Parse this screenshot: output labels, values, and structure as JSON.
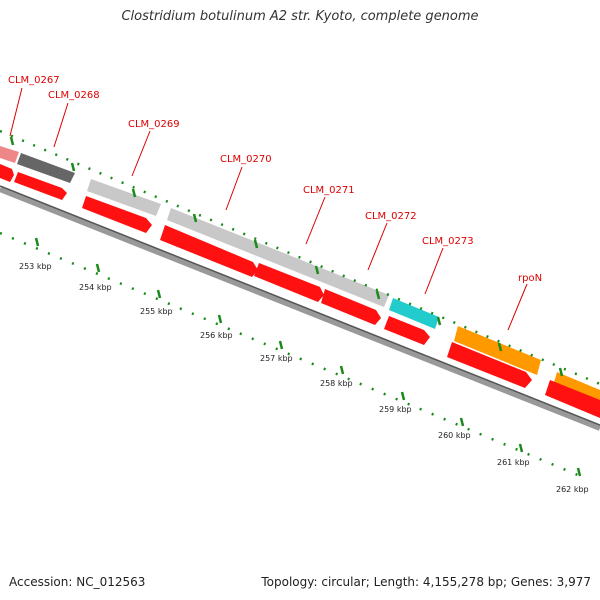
{
  "title": "Clostridium botulinum A2 str. Kyoto, complete genome",
  "footer": {
    "accession": "Accession: NC_012563",
    "summary": "Topology: circular; Length: 4,155,278 bp; Genes: 3,977"
  },
  "colors": {
    "label": "#dd0000",
    "tick": "#1a8a1a",
    "backbone": "#888888",
    "cds": "#ff1111",
    "gray_feature": "#c8c8c8",
    "dark_feature": "#666666",
    "pink_feature": "#ee8888",
    "cyan_feature": "#22cccc",
    "orange_feature": "#ff9900"
  },
  "gene_labels": [
    "CLM_0267",
    "CLM_0268",
    "CLM_0269",
    "CLM_0270",
    "CLM_0271",
    "CLM_0272",
    "CLM_0273",
    "rpoN"
  ],
  "kbp_labels": [
    "253 kbp",
    "254 kbp",
    "255 kbp",
    "256 kbp",
    "257 kbp",
    "258 kbp",
    "259 kbp",
    "260 kbp",
    "261 kbp",
    "262 kbp"
  ]
}
